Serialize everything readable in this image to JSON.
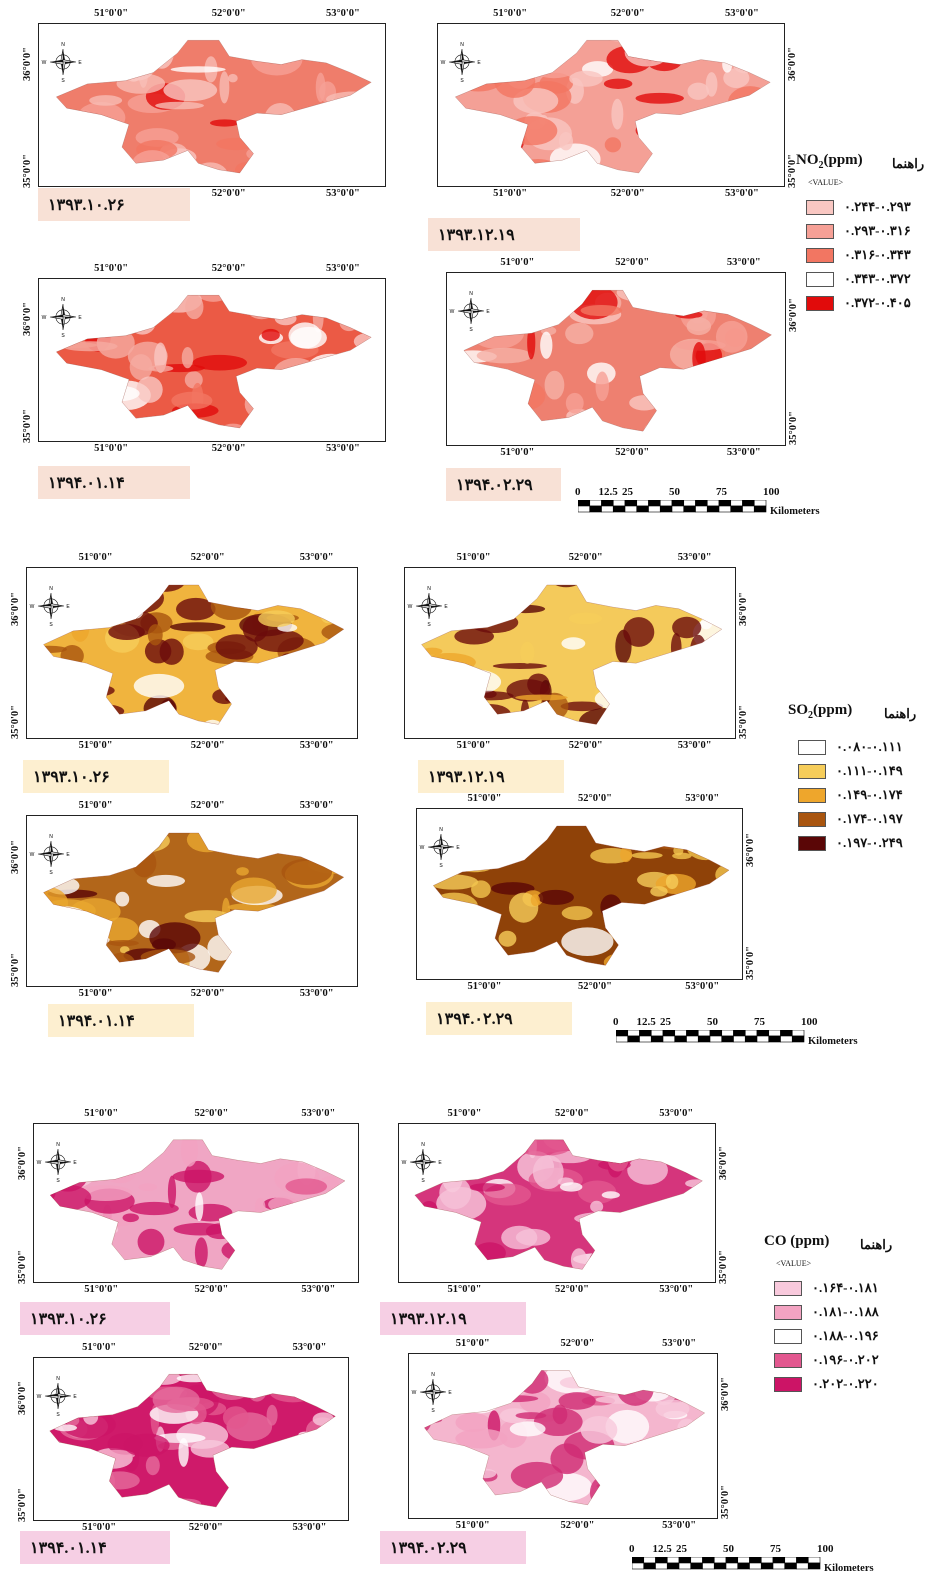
{
  "ticks": {
    "lon": [
      "51°0'0\"",
      "52°0'0\"",
      "53°0'0\""
    ],
    "lat": [
      "36°0'0\"",
      "35°0'0\""
    ]
  },
  "dates": [
    "۱۳۹۳.۱۰.۲۶",
    "۱۳۹۳.۱۲.۱۹",
    "۱۳۹۴.۰۱.۱۴",
    "۱۳۹۴.۰۲.۲۹"
  ],
  "compass_letters": [
    "N",
    "E",
    "S",
    "W"
  ],
  "scale_bar": {
    "labels": [
      "0",
      "12.5",
      "25",
      "50",
      "75",
      "100"
    ],
    "unit": "Kilometers"
  },
  "panels": [
    {
      "id": "no2",
      "legend_title": "NO2(ppm)",
      "legend_header": "راهنما",
      "legend_subheader": "<VALUE>",
      "date_bg": "#f8e1d6",
      "classes": [
        {
          "label": "۰.۲۴۴-۰.۲۹۳",
          "color": "#f9c7c2"
        },
        {
          "label": "۰.۲۹۳-۰.۳۱۶",
          "color": "#f6a096"
        },
        {
          "label": "۰.۳۱۶-۰.۳۴۳",
          "color": "#f27662"
        },
        {
          "label": "۰.۳۴۳-۰.۳۷۲",
          "color": "#ffffff"
        },
        {
          "label": "۰.۳۷۲-۰.۴۰۵",
          "color": "#e10b0b"
        }
      ],
      "map_fills": [
        "#ef7d6b",
        "#f4a096",
        "#eb5a45",
        "#ee8070"
      ],
      "map_accents": [
        "#f7bcb4",
        "#f9c6c0",
        "#f5aba1",
        "#f5b0a6"
      ]
    },
    {
      "id": "so2",
      "legend_title": "SO2(ppm)",
      "legend_header": "راهنما",
      "legend_subheader": "",
      "date_bg": "#fdefd0",
      "classes": [
        {
          "label": "۰.۰۸۰-۰.۱۱۱",
          "color": "#ffffff"
        },
        {
          "label": "۰.۱۱۱-۰.۱۴۹",
          "color": "#f6cd5a"
        },
        {
          "label": "۰.۱۴۹-۰.۱۷۴",
          "color": "#eea62c"
        },
        {
          "label": "۰.۱۷۴-۰.۱۹۷",
          "color": "#a9550f"
        },
        {
          "label": "۰.۱۹۷-۰.۲۴۹",
          "color": "#5a0606"
        }
      ],
      "map_fills": [
        "#f0b43e",
        "#f4ca5b",
        "#b2661a",
        "#8f4208"
      ],
      "map_accents": [
        "#6b0b0b",
        "#6b0b0b",
        "#e9a72f",
        "#f3c64f"
      ]
    },
    {
      "id": "co",
      "legend_title": "CO (ppm)",
      "legend_header": "راهنما",
      "legend_subheader": "<VALUE>",
      "date_bg": "#f6cfe4",
      "classes": [
        {
          "label": "۰.۱۶۴-۰.۱۸۱",
          "color": "#f8c9dc"
        },
        {
          "label": "۰.۱۸۱-۰.۱۸۸",
          "color": "#f3a3c2"
        },
        {
          "label": "۰.۱۸۸-۰.۱۹۶",
          "color": "#ffffff"
        },
        {
          "label": "۰.۱۹۶-۰.۲۰۲",
          "color": "#e2578f"
        },
        {
          "label": "۰.۲۰۲-۰.۲۲۰",
          "color": "#cc1466"
        }
      ],
      "map_fills": [
        "#f0a6c4",
        "#d5357c",
        "#cf1a6a",
        "#f4b6ce"
      ],
      "map_accents": [
        "#cc1466",
        "#f6c2d8",
        "#e56b9c",
        "#cf2a73"
      ]
    }
  ]
}
